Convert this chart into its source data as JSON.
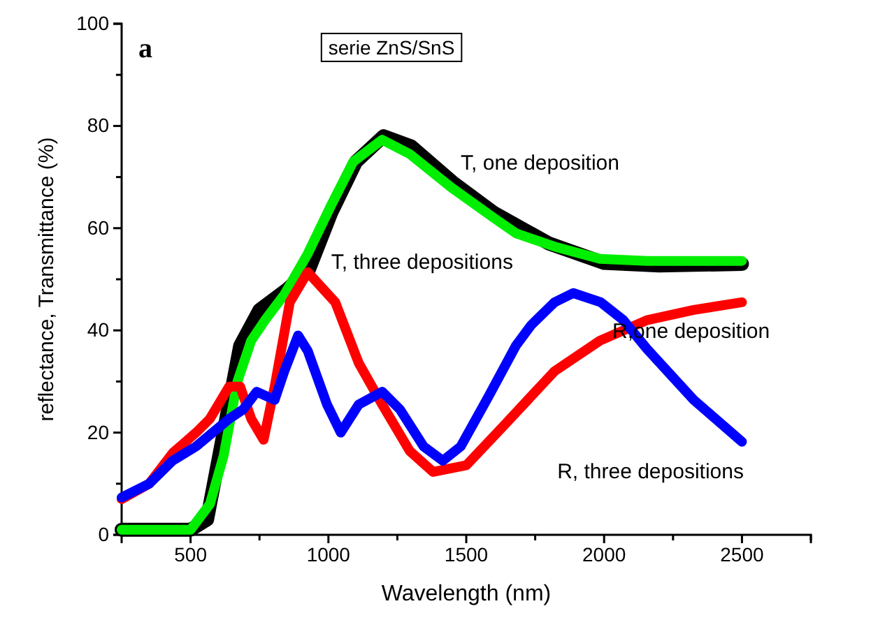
{
  "chart_data": {
    "type": "line",
    "title": "serie ZnS/SnS",
    "xlabel": "Wavelength (nm)",
    "ylabel": "reflectance, Transmittance (%)",
    "annotations": [
      "a"
    ],
    "xlim": [
      250,
      2750
    ],
    "ylim": [
      0,
      100
    ],
    "xticks": [
      500,
      {
        "value": 750,
        "label": null
      },
      1000,
      {
        "value": 1250,
        "label": null
      },
      1500,
      {
        "value": 1750,
        "label": null
      },
      2000,
      {
        "value": 2250,
        "label": null
      },
      2500,
      {
        "value": 2750,
        "label": null
      }
    ],
    "yticks": [
      0,
      {
        "value": 10,
        "label": null
      },
      20,
      {
        "value": 30,
        "label": null
      },
      40,
      {
        "value": 50,
        "label": null
      },
      60,
      {
        "value": 70,
        "label": null
      },
      80,
      {
        "value": 90,
        "label": null
      },
      100
    ],
    "grid": false,
    "marker": "none",
    "line_style": "solid",
    "series": [
      {
        "name": "T, one deposition",
        "color": "#000000",
        "x": [
          250,
          500,
          560,
          620,
          680,
          750,
          850,
          930,
          1010,
          1100,
          1200,
          1300,
          1450,
          1600,
          1800,
          2000,
          2200,
          2500
        ],
        "values": [
          1,
          1,
          3,
          20,
          37,
          44,
          48,
          52,
          63,
          73,
          78,
          76,
          69,
          63,
          57,
          53.2,
          52.7,
          53
        ]
      },
      {
        "name": "T, three depositions",
        "color": "#00ee00",
        "x": [
          250,
          500,
          570,
          620,
          670,
          720,
          770,
          840,
          925,
          1010,
          1090,
          1195,
          1295,
          1445,
          1600,
          1680,
          1820,
          1985,
          2155,
          2325,
          2500
        ],
        "values": [
          1,
          1,
          6,
          15.5,
          30,
          38,
          42,
          47,
          55,
          64.5,
          73,
          77.3,
          74.5,
          68,
          62,
          59,
          56.4,
          54,
          53.6,
          53.6,
          53.6
        ]
      },
      {
        "name": "R,one deposition",
        "color": "#ff0000",
        "x": [
          250,
          350,
          435,
          520,
          570,
          640,
          680,
          720,
          765,
          805,
          860,
          925,
          1025,
          1110,
          1195,
          1295,
          1380,
          1500,
          1630,
          1820,
          1985,
          2155,
          2325,
          2500
        ],
        "values": [
          7,
          10,
          16,
          20,
          22.7,
          29,
          29,
          22.7,
          18.6,
          29,
          45.5,
          51.4,
          45.5,
          33.6,
          25.5,
          16.4,
          12.3,
          13.6,
          21,
          32,
          38,
          42,
          44,
          45.5
        ]
      },
      {
        "name": "R, three depositions",
        "color": "#0000ff",
        "x": [
          250,
          350,
          435,
          520,
          640,
          690,
          740,
          805,
          840,
          890,
          925,
          995,
          1045,
          1110,
          1195,
          1260,
          1345,
          1415,
          1480,
          1580,
          1680,
          1735,
          1820,
          1888,
          1988,
          2070,
          2155,
          2325,
          2500
        ],
        "values": [
          7.3,
          10,
          14.5,
          17.3,
          22.7,
          24.5,
          28,
          26.4,
          32,
          39,
          36,
          25.5,
          20,
          25.5,
          28,
          24.5,
          17.3,
          14.5,
          17.3,
          27,
          37,
          41,
          45.5,
          47.3,
          45.5,
          42,
          36.4,
          26.4,
          18.2
        ]
      }
    ]
  }
}
